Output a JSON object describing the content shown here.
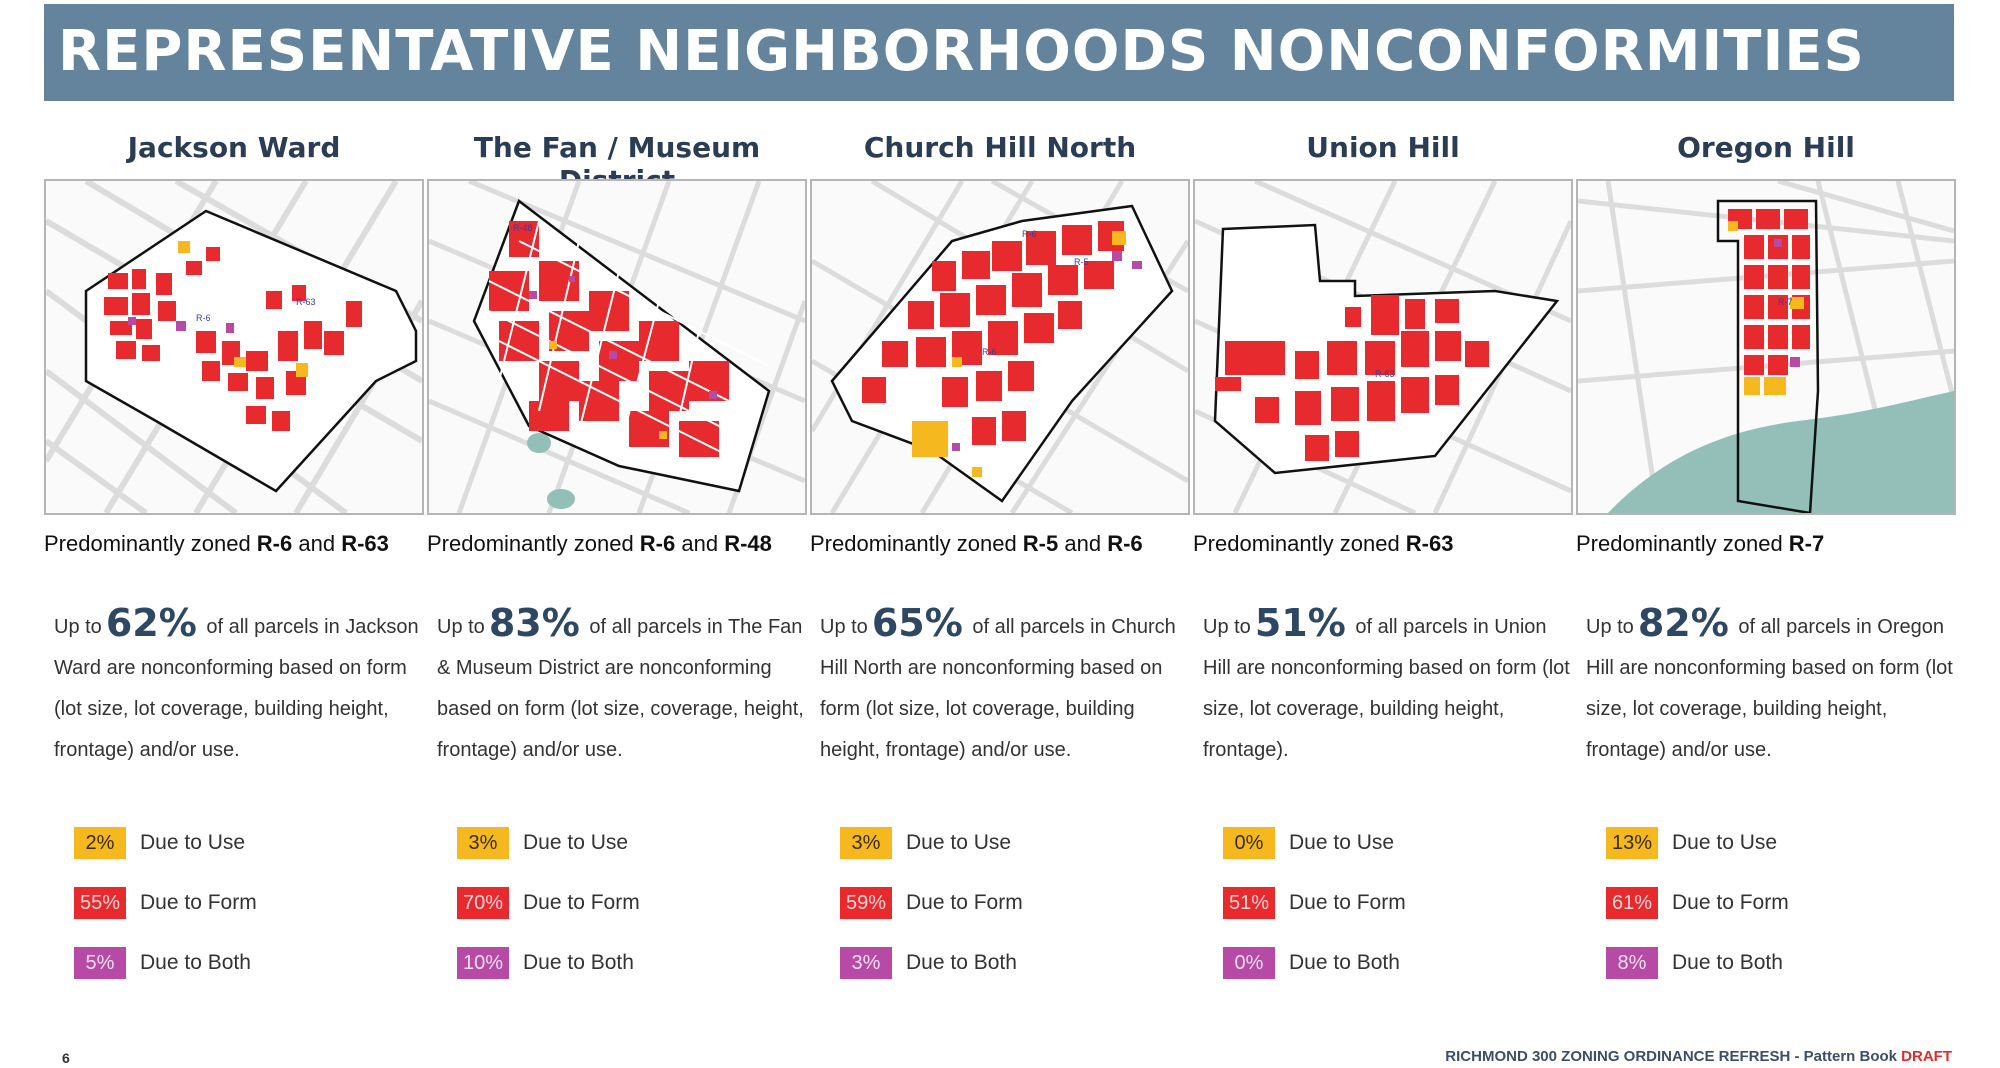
{
  "title": "REPRESENTATIVE NEIGHBORHOODS NONCONFORMITIES",
  "colors": {
    "use": "#f5b91f",
    "form": "#e62a2e",
    "both": "#b64aa4",
    "title_bar": "#64839c",
    "water": "#93bfb8"
  },
  "neighborhoods": [
    {
      "name": "Jackson Ward",
      "zoned_prefix": "Predominantly zoned ",
      "zone1": "R-6",
      "zoned_mid": " and ",
      "zone2": "R-63",
      "stat_prefix": "Up to",
      "percent": "62%",
      "stat_text": "of all parcels in Jackson Ward are nonconforming based on form (lot size, lot coverage, building height, frontage) and/or use.",
      "use_pct": "2%",
      "form_pct": "55%",
      "both_pct": "5%",
      "use_label": "Due to Use",
      "form_label": "Due to Form",
      "both_label": "Due to Both",
      "map_labels": [
        "R-6",
        "R-63"
      ]
    },
    {
      "name": "The Fan / Museum District",
      "zoned_prefix": "Predominantly zoned ",
      "zone1": "R-6",
      "zoned_mid": " and ",
      "zone2": "R-48",
      "stat_prefix": "Up to",
      "percent": "83%",
      "stat_text": "of all parcels in The Fan & Museum District are nonconforming based on form (lot size, coverage, height, frontage) and/or use.",
      "use_pct": "3%",
      "form_pct": "70%",
      "both_pct": "10%",
      "use_label": "Due to Use",
      "form_label": "Due to Form",
      "both_label": "Due to Both",
      "map_labels": [
        "R-48"
      ]
    },
    {
      "name": "Church Hill North",
      "zoned_prefix": "Predominantly zoned ",
      "zone1": "R-5",
      "zoned_mid": " and ",
      "zone2": "R-6",
      "stat_prefix": "Up to",
      "percent": "65%",
      "stat_text": "of all parcels in Church Hill North are nonconforming based on form (lot size, lot coverage, building height, frontage) and/or use.",
      "use_pct": "3%",
      "form_pct": "59%",
      "both_pct": "3%",
      "use_label": "Due to Use",
      "form_label": "Due to Form",
      "both_label": "Due to Both",
      "map_labels": [
        "R-6",
        "R-5",
        "R-6"
      ]
    },
    {
      "name": "Union Hill",
      "zoned_prefix": "Predominantly zoned ",
      "zone1": "R-63",
      "zoned_mid": "",
      "zone2": "",
      "stat_prefix": "Up to",
      "percent": "51%",
      "stat_text": "of all parcels in Union Hill are nonconforming based on form (lot size, lot coverage, building height, frontage).",
      "use_pct": "0%",
      "form_pct": "51%",
      "both_pct": "0%",
      "use_label": "Due to Use",
      "form_label": "Due to Form",
      "both_label": "Due to Both",
      "map_labels": [
        "R-63"
      ]
    },
    {
      "name": "Oregon Hill",
      "zoned_prefix": "Predominantly zoned ",
      "zone1": "R-7",
      "zoned_mid": "",
      "zone2": "",
      "stat_prefix": "Up to",
      "percent": "82%",
      "stat_text": "of all parcels in Oregon Hill are nonconforming based on form (lot size, lot coverage, building height, frontage) and/or use.",
      "use_pct": "13%",
      "form_pct": "61%",
      "both_pct": "8%",
      "use_label": "Due to Use",
      "form_label": "Due to Form",
      "both_label": "Due to Both",
      "map_labels": [
        "R-7"
      ]
    }
  ],
  "footer": {
    "page_number": "6",
    "text": "RICHMOND 300 ZONING ORDINANCE REFRESH - Pattern Book ",
    "draft": "DRAFT"
  }
}
